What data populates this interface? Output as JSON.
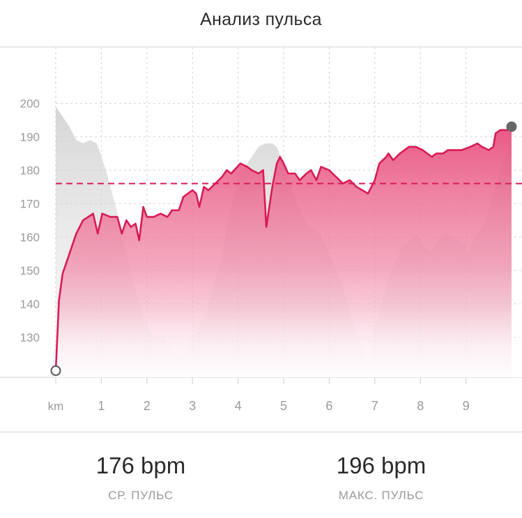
{
  "header": {
    "title": "Анализ пульса"
  },
  "chart_data": {
    "type": "line",
    "title": "Анализ пульса",
    "x_unit_label": "km",
    "x_ticks": [
      1,
      2,
      3,
      4,
      5,
      6,
      7,
      8,
      9
    ],
    "y_ticks": [
      130,
      140,
      150,
      160,
      170,
      180,
      190,
      200
    ],
    "xlim": [
      0,
      10
    ],
    "ylim": [
      118,
      203
    ],
    "grid": true,
    "colors": {
      "line": "#d81b55",
      "fill": "#e85a86",
      "elevation": "#c8c8c8",
      "avg": "#d81b55"
    },
    "average_line": 176,
    "series": [
      {
        "values": [
          [
            0.0,
            120
          ],
          [
            0.07,
            141
          ],
          [
            0.15,
            149
          ],
          [
            0.3,
            155
          ],
          [
            0.45,
            161
          ],
          [
            0.6,
            165
          ],
          [
            0.82,
            167
          ],
          [
            0.92,
            161
          ],
          [
            1.02,
            167
          ],
          [
            1.2,
            166
          ],
          [
            1.35,
            166
          ],
          [
            1.45,
            161
          ],
          [
            1.55,
            165
          ],
          [
            1.65,
            163
          ],
          [
            1.75,
            164
          ],
          [
            1.83,
            159
          ],
          [
            1.92,
            169
          ],
          [
            2.0,
            166
          ],
          [
            2.15,
            166
          ],
          [
            2.3,
            167
          ],
          [
            2.45,
            166
          ],
          [
            2.55,
            168
          ],
          [
            2.7,
            168
          ],
          [
            2.8,
            172
          ],
          [
            3.0,
            174
          ],
          [
            3.08,
            173
          ],
          [
            3.15,
            169
          ],
          [
            3.25,
            175
          ],
          [
            3.35,
            174
          ],
          [
            3.5,
            176
          ],
          [
            3.65,
            178
          ],
          [
            3.75,
            180
          ],
          [
            3.85,
            179
          ],
          [
            4.05,
            182
          ],
          [
            4.2,
            181
          ],
          [
            4.3,
            180
          ],
          [
            4.45,
            179
          ],
          [
            4.55,
            180
          ],
          [
            4.62,
            163
          ],
          [
            4.75,
            175
          ],
          [
            4.85,
            182
          ],
          [
            4.92,
            184
          ],
          [
            5.0,
            182
          ],
          [
            5.1,
            179
          ],
          [
            5.25,
            179
          ],
          [
            5.35,
            177
          ],
          [
            5.5,
            179
          ],
          [
            5.6,
            180
          ],
          [
            5.72,
            177
          ],
          [
            5.82,
            181
          ],
          [
            6.0,
            180
          ],
          [
            6.15,
            178
          ],
          [
            6.3,
            176
          ],
          [
            6.45,
            177
          ],
          [
            6.6,
            175
          ],
          [
            6.85,
            173
          ],
          [
            7.0,
            177
          ],
          [
            7.1,
            182
          ],
          [
            7.25,
            184
          ],
          [
            7.3,
            185
          ],
          [
            7.4,
            183
          ],
          [
            7.55,
            185
          ],
          [
            7.75,
            187
          ],
          [
            7.9,
            187
          ],
          [
            8.05,
            186
          ],
          [
            8.15,
            185
          ],
          [
            8.25,
            184
          ],
          [
            8.35,
            185
          ],
          [
            8.5,
            185
          ],
          [
            8.6,
            186
          ],
          [
            8.75,
            186
          ],
          [
            8.9,
            186
          ],
          [
            9.1,
            187
          ],
          [
            9.25,
            188
          ],
          [
            9.35,
            187
          ],
          [
            9.5,
            186
          ],
          [
            9.6,
            187
          ],
          [
            9.65,
            191
          ],
          [
            9.75,
            192
          ],
          [
            9.9,
            192
          ],
          [
            10.0,
            193
          ]
        ]
      }
    ],
    "elevation_profile": [
      [
        0.0,
        199
      ],
      [
        0.2,
        195
      ],
      [
        0.3,
        193
      ],
      [
        0.45,
        189
      ],
      [
        0.6,
        188
      ],
      [
        0.75,
        189
      ],
      [
        0.9,
        188
      ],
      [
        1.1,
        180
      ],
      [
        1.3,
        170
      ],
      [
        1.5,
        158
      ],
      [
        1.7,
        146
      ],
      [
        1.9,
        137
      ],
      [
        2.0,
        133
      ],
      [
        2.2,
        130
      ],
      [
        2.4,
        129
      ],
      [
        2.6,
        125
      ],
      [
        2.72,
        124
      ],
      [
        2.85,
        127
      ],
      [
        3.0,
        130
      ],
      [
        3.3,
        137
      ],
      [
        3.6,
        152
      ],
      [
        3.8,
        166
      ],
      [
        4.0,
        178
      ],
      [
        4.25,
        183
      ],
      [
        4.45,
        187
      ],
      [
        4.6,
        188
      ],
      [
        4.75,
        188
      ],
      [
        4.85,
        187
      ],
      [
        5.1,
        178
      ],
      [
        5.3,
        170
      ],
      [
        5.5,
        164
      ],
      [
        5.8,
        161
      ],
      [
        6.0,
        155
      ],
      [
        6.3,
        145
      ],
      [
        6.55,
        133
      ],
      [
        6.7,
        127
      ],
      [
        6.82,
        122
      ],
      [
        7.05,
        135
      ],
      [
        7.3,
        148
      ],
      [
        7.6,
        157
      ],
      [
        7.95,
        161
      ],
      [
        8.1,
        157
      ],
      [
        8.25,
        156
      ],
      [
        8.5,
        161
      ],
      [
        8.75,
        160
      ],
      [
        8.95,
        158
      ],
      [
        9.05,
        155
      ],
      [
        9.2,
        160
      ],
      [
        9.4,
        164
      ],
      [
        9.65,
        175
      ],
      [
        9.85,
        184
      ],
      [
        10.0,
        188
      ]
    ]
  },
  "stats": {
    "avg": {
      "value": "176 bpm",
      "label": "СР. ПУЛЬС"
    },
    "max": {
      "value": "196 bpm",
      "label": "МАКС. ПУЛЬС"
    }
  }
}
